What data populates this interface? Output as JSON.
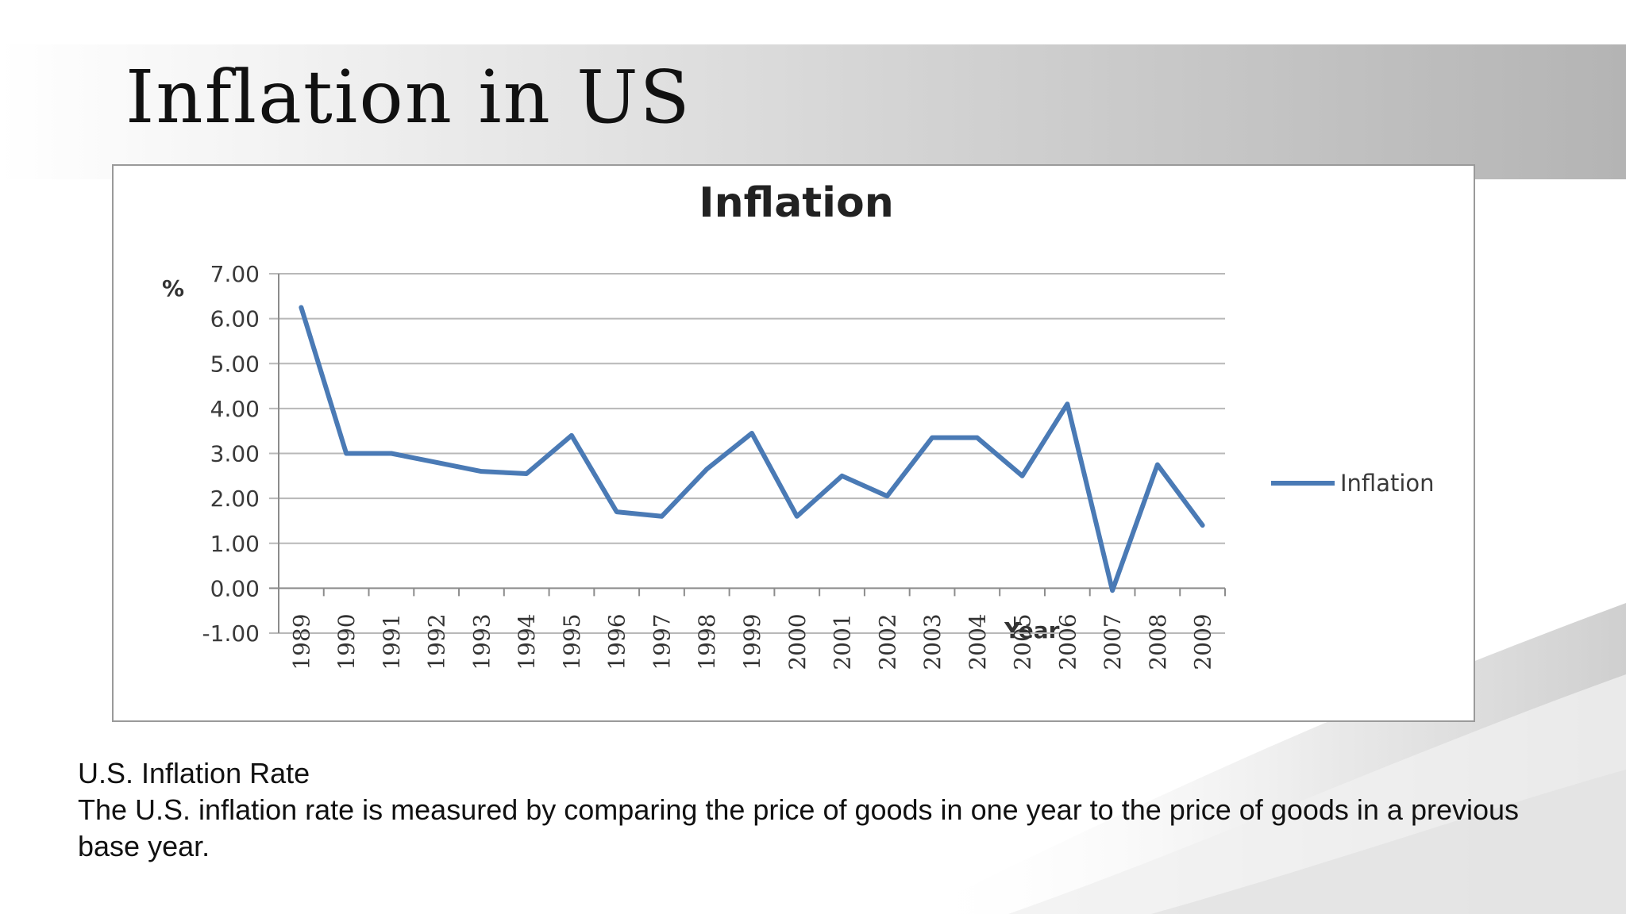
{
  "slide": {
    "title": "Inflation in US",
    "caption_heading": "U.S. Inflation Rate",
    "caption_body": "The U.S. inflation rate is measured by comparing the price of goods in one year to the price of goods in a previous base year."
  },
  "colors": {
    "series_line": "#4a7ab5",
    "gridline": "#b8b8b8",
    "axis": "#8c8c8c",
    "text": "#3a3a3a"
  },
  "chart_data": {
    "type": "line",
    "title": "Inflation",
    "xlabel": "Year",
    "ylabel": "%",
    "categories": [
      "1989",
      "1990",
      "1991",
      "1992",
      "1993",
      "1994",
      "1995",
      "1996",
      "1997",
      "1998",
      "1999",
      "2000",
      "2001",
      "2002",
      "2003",
      "2004",
      "2005",
      "2006",
      "2007",
      "2008",
      "2009"
    ],
    "series": [
      {
        "name": "Inflation",
        "values": [
          6.25,
          3.0,
          3.0,
          2.8,
          2.6,
          2.55,
          3.4,
          1.7,
          1.6,
          2.65,
          3.45,
          1.6,
          2.5,
          2.05,
          3.35,
          3.35,
          2.5,
          4.1,
          -0.05,
          2.75,
          1.4
        ]
      }
    ],
    "ylim": [
      -1.0,
      7.0
    ],
    "yticks": [
      "7.00",
      "6.00",
      "5.00",
      "4.00",
      "3.00",
      "2.00",
      "1.00",
      "0.00",
      "-1.00"
    ],
    "grid": true,
    "legend": "right"
  }
}
